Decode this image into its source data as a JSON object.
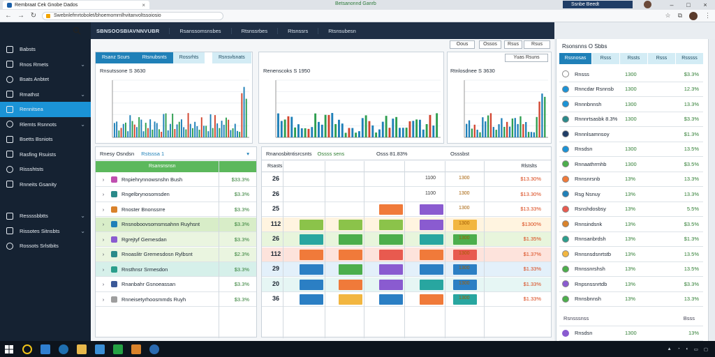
{
  "browser": {
    "tab_title": "Rembraat Cek Gnobe Dados",
    "window_title": "Betsanonnd Ganrb",
    "search_label": "Ssnbe Beedt",
    "url": "Swebnlefmrtobolet/bhoemomrnlhvitanvoltssoiosio"
  },
  "sidebar": {
    "items": [
      {
        "label": "Babsts",
        "chevron": false
      },
      {
        "label": "Rnos Rmets",
        "chevron": true
      },
      {
        "label": "Bsats Anbtet",
        "chevron": false
      },
      {
        "label": "Rmathst",
        "chevron": true
      },
      {
        "label": "Rennitsea",
        "chevron": false,
        "active": true
      },
      {
        "label": "Rlemts Rsnnots",
        "chevron": true
      },
      {
        "label": "Bsetts Bsniots",
        "chevron": false
      },
      {
        "label": "Rasfing Rsuists",
        "chevron": false
      },
      {
        "label": "Rissshtsts",
        "chevron": false
      },
      {
        "label": "Rnneits Gsanity",
        "chevron": false
      }
    ],
    "items_lower": [
      {
        "label": "Ressssbbtts",
        "chevron": true
      },
      {
        "label": "Rissotes Sitnsbts",
        "chevron": true
      },
      {
        "label": "Rossots Srlstbits",
        "chevron": false
      }
    ]
  },
  "header": {
    "title": "SBNSOOSBIAVNNVUBR",
    "nav": [
      "Rsanssomsnsbes",
      "Rtsnssrbes",
      "Rtsnssrs",
      "Rtsnsubesn"
    ]
  },
  "toolbar": {
    "btn1": "Oous",
    "btn2": "Ossos",
    "btn3": "Rsus"
  },
  "charts": {
    "tabs": [
      "Rsanz Scurs",
      "Rtsnubsnts",
      "Rossrhts",
      "Rsnsvlsnats"
    ],
    "dropdown": "Yuas Rsuns",
    "chart1_title": "Rnsutssone S 3630",
    "chart2_title": "Renenscoks S 1950",
    "chart3_title": "Rtnlosdnee S 3630"
  },
  "left_table": {
    "header": "Rnesy Osndsn",
    "header_badge": "Rstsssa 1",
    "column_header": "Rsansnsnsn",
    "rows": [
      {
        "name": "Rnpiehrynnowsnshn Bush",
        "value": "$33.3%"
      },
      {
        "name": "Rngelbrynosomsden",
        "value": "$3.3%"
      },
      {
        "name": "Rnoster Bnonssrre",
        "value": "$3.3%"
      },
      {
        "name": "Rnsnoboovsomsmsahnn Ruyhsnt",
        "value": "$3.3%"
      },
      {
        "name": "Rgrejtyf Gemesdan",
        "value": "$3.3%"
      },
      {
        "name": "Rnoaslitr Gremesdosn Rylbsnt",
        "value": "$2.3%"
      },
      {
        "name": "Rnsthnsr Srmesdon",
        "value": "$3.3%"
      },
      {
        "name": "Rnanbahr Gsnoeassan",
        "value": "$3.3%"
      },
      {
        "name": "Rnneisetyrhoosmmds Ruyh",
        "value": "$3.3%"
      }
    ]
  },
  "grid_table": {
    "header": "Rnanosbitntisrcsnts",
    "header_green": "Ossss sens",
    "header_mid": "Osss 81.83%",
    "header_right": "Osssbst",
    "column_header": "Rsasts",
    "column_header_right": "Rlstslts",
    "rows": [
      {
        "num": "26",
        "text": "1100",
        "amount": "1300",
        "pct": "$13.30%"
      },
      {
        "num": "26",
        "text": "1100",
        "amount": "1300",
        "pct": "$13.30%"
      },
      {
        "num": "25",
        "text": "",
        "amount": "1300",
        "pct": "$13.33%"
      },
      {
        "num": "112",
        "text": "",
        "amount": "1300",
        "pct": "$1300%"
      },
      {
        "num": "26",
        "text": "",
        "amount": "1300",
        "pct": "$1.35%"
      },
      {
        "num": "112",
        "text": "",
        "amount": "1300",
        "pct": "$1.37%"
      },
      {
        "num": "29",
        "text": "",
        "amount": "1300",
        "pct": "$1.33%"
      },
      {
        "num": "20",
        "text": "",
        "amount": "1300",
        "pct": "$1.33%"
      },
      {
        "num": "36",
        "text": "",
        "amount": "1300",
        "pct": "$1.33%"
      }
    ]
  },
  "right_panel": {
    "title": "Rsonsnns O Sbbs",
    "tabs": [
      "Rssnosas",
      "Rsss",
      "Rssts",
      "Rsss",
      "Rsssss"
    ],
    "rows": [
      {
        "name": "Rnsss",
        "num": "1300",
        "pct": "$3.3%"
      },
      {
        "name": "Rnncdar Rsnnsb",
        "num": "1300",
        "pct": "12.3%"
      },
      {
        "name": "Rnnnbnnsh",
        "num": "1300",
        "pct": "13.3%"
      },
      {
        "name": "Rnnnrtsasbk 8.3%",
        "num": "1300",
        "pct": "$3.3%"
      },
      {
        "name": "Rnnnlsamnsoy",
        "num": "",
        "pct": "$1.3%"
      },
      {
        "name": "Rnsdsn",
        "num": "1300",
        "pct": "13.5%"
      },
      {
        "name": "Rnnaathrmhb",
        "num": "1300",
        "pct": "$3.5%"
      },
      {
        "name": "Rnnsnrsnb",
        "num": "13%",
        "pct": "13.3%"
      },
      {
        "name": "Rsg Nsnuy",
        "num": "13%",
        "pct": "13.3%"
      },
      {
        "name": "Rsnshdosbsy",
        "num": "13%",
        "pct": "5.5%"
      },
      {
        "name": "Rnnsindsnk",
        "num": "13%",
        "pct": "$3.5%"
      },
      {
        "name": "Rnnsanbrdsh",
        "num": "13%",
        "pct": "$1.3%"
      },
      {
        "name": "Rnnsnsdsnrtstb",
        "num": "13%",
        "pct": "13.5%"
      },
      {
        "name": "Rnnssnrshsh",
        "num": "13%",
        "pct": "13.5%"
      },
      {
        "name": "Rnpsnssnrtdb",
        "num": "13%",
        "pct": "$3.3%"
      },
      {
        "name": "Rnnsbnnsh",
        "num": "13%",
        "pct": "13.3%"
      }
    ],
    "subheader": "Rsnsssnss",
    "subheader_right": "Bsss",
    "bottom_rows": [
      {
        "name": "Rnsdsn",
        "num": "1300",
        "pct": "13%"
      },
      {
        "name": "Rnsdsnsdsn",
        "num": "1300",
        "pct": "13%"
      }
    ]
  },
  "colors": {
    "sidebar_bg": "#152232",
    "accent": "#1b93d6",
    "header_bg": "#1f2f45",
    "positive": "#2e7d32"
  }
}
